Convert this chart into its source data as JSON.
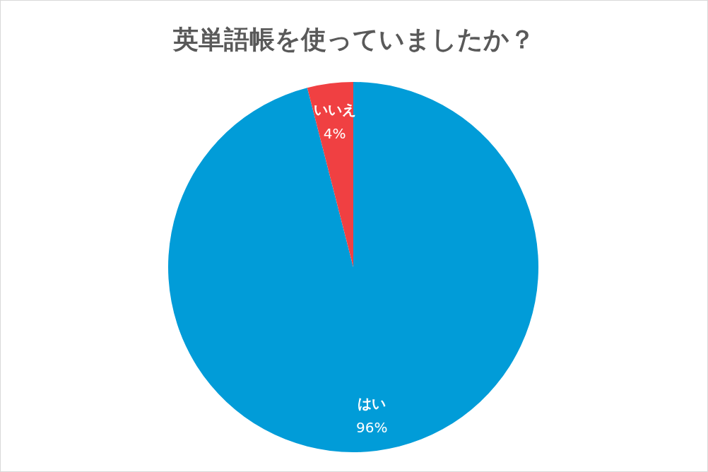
{
  "chart_data": {
    "type": "pie",
    "title": "英単語帳を使っていましたか？",
    "categories": [
      "はい",
      "いいえ"
    ],
    "values": [
      96,
      4
    ],
    "colors": [
      "#019cd8",
      "#f04042"
    ],
    "value_labels": [
      "96%",
      "4%"
    ]
  }
}
